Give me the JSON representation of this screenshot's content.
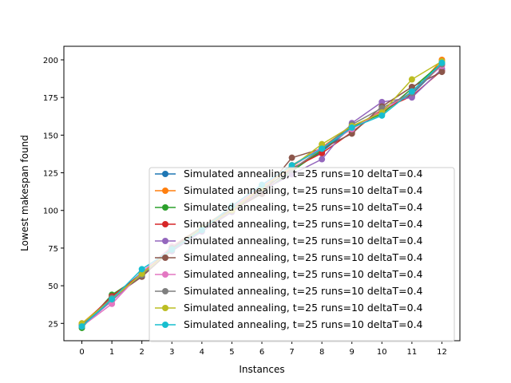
{
  "chart_data": {
    "type": "line",
    "xlabel": "Instances",
    "ylabel": "Lowest makespan found",
    "x": [
      0,
      1,
      2,
      3,
      4,
      5,
      6,
      7,
      8,
      9,
      10,
      11,
      12
    ],
    "x_ticks": [
      "0",
      "1",
      "2",
      "3",
      "4",
      "5",
      "6",
      "7",
      "8",
      "9",
      "10",
      "11",
      "12"
    ],
    "xlim": [
      -0.6,
      12.6
    ],
    "ylim": [
      13.5,
      209
    ],
    "y_ticks": [
      25,
      50,
      75,
      100,
      125,
      150,
      175,
      200
    ],
    "y_tick_labels": [
      "25",
      "50",
      "75",
      "100",
      "125",
      "150",
      "175",
      "200"
    ],
    "grid": false,
    "legend_position": "lower right",
    "series": [
      {
        "name": "Simulated annealing, t=25 runs=10 deltaT=0.4",
        "color": "#1f77b4",
        "values": [
          23,
          41,
          59,
          75,
          88,
          100,
          114,
          127,
          139,
          155,
          166,
          177,
          197
        ]
      },
      {
        "name": "Simulated annealing, t=25 runs=10 deltaT=0.4",
        "color": "#ff7f0e",
        "values": [
          25,
          42,
          58,
          76,
          89,
          102,
          115,
          130,
          142,
          156,
          165,
          178,
          200
        ]
      },
      {
        "name": "Simulated annealing, t=25 runs=10 deltaT=0.4",
        "color": "#2ca02c",
        "values": [
          22,
          44,
          57,
          74,
          88,
          100,
          112,
          126,
          140,
          156,
          164,
          181,
          198
        ]
      },
      {
        "name": "Simulated annealing, t=25 runs=10 deltaT=0.4",
        "color": "#d62728",
        "values": [
          24,
          43,
          58,
          75,
          87,
          101,
          113,
          128,
          138,
          152,
          167,
          176,
          193
        ]
      },
      {
        "name": "Simulated annealing, t=25 runs=10 deltaT=0.4",
        "color": "#9467bd",
        "values": [
          23,
          40,
          58,
          73,
          86,
          99,
          113,
          124,
          134,
          158,
          172,
          175,
          194
        ]
      },
      {
        "name": "Simulated annealing, t=25 runs=10 deltaT=0.4",
        "color": "#8c564b",
        "values": [
          24,
          42,
          56,
          74,
          87,
          100,
          111,
          135,
          141,
          151,
          169,
          182,
          192
        ]
      },
      {
        "name": "Simulated annealing, t=25 runs=10 deltaT=0.4",
        "color": "#e377c2",
        "values": [
          23,
          38,
          59,
          76,
          88,
          102,
          116,
          129,
          142,
          154,
          166,
          179,
          196
        ]
      },
      {
        "name": "Simulated annealing, t=25 runs=10 deltaT=0.4",
        "color": "#7f7f7f",
        "values": [
          24,
          42,
          57,
          75,
          89,
          101,
          114,
          127,
          141,
          157,
          168,
          178,
          197
        ]
      },
      {
        "name": "Simulated annealing, t=25 runs=10 deltaT=0.4",
        "color": "#bcbd22",
        "values": [
          25,
          41,
          58,
          74,
          88,
          100,
          115,
          129,
          144,
          156,
          165,
          187,
          199
        ]
      },
      {
        "name": "Simulated annealing, t=25 runs=10 deltaT=0.4",
        "color": "#17becf",
        "values": [
          23,
          41,
          61,
          74,
          87,
          103,
          117,
          130,
          141,
          155,
          163,
          179,
          198
        ]
      }
    ]
  }
}
